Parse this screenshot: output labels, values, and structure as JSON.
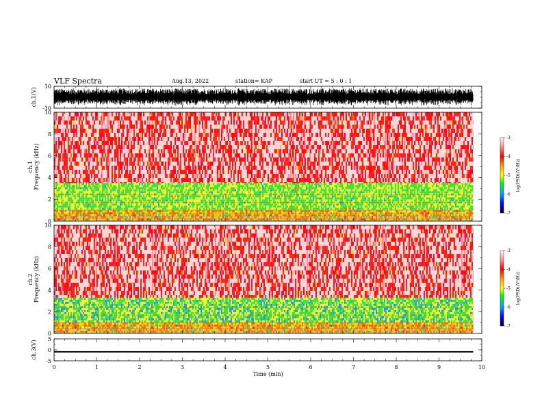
{
  "header": {
    "title": "VLF Spectra",
    "date": "Aug.13, 2022",
    "station": "station= KAP",
    "start_ut": "start  UT  =   5 : 0  : 1"
  },
  "colors": {
    "spec_high": "#ff2020",
    "spec_band": "#33dd33",
    "spec_mid": "#ffdd00",
    "waveform": "#000000"
  },
  "chart_data": [
    {
      "type": "line",
      "id": "ch1-waveform",
      "ylabel": "ch.1(V)",
      "ylim": [
        -10,
        10
      ],
      "yticks": [
        "10",
        "-10"
      ],
      "xlim": [
        0,
        10
      ],
      "series": [
        {
          "values_note": "",
          "envelope": [
            -8,
            8
          ]
        }
      ]
    },
    {
      "type": "heatmap",
      "id": "ch1-spectrogram",
      "ylabel": "ch.1\nFrequency  (kHz)",
      "ylim": [
        0,
        10
      ],
      "yticks": [
        "0",
        "2",
        "4",
        "6",
        "8",
        "10"
      ],
      "xlim": [
        0,
        9.8
      ],
      "colorbar": {
        "label": "log(PSD)(V²/Hz)",
        "ticks": [
          "-3",
          "-4",
          "-5",
          "-6",
          "-7"
        ],
        "range": [
          -7,
          -3
        ]
      },
      "bands": [
        {
          "from_khz": 0.0,
          "to_khz": 1.0,
          "level": -4.6
        },
        {
          "from_khz": 1.0,
          "to_khz": 3.5,
          "level": -5.2
        },
        {
          "from_khz": 3.5,
          "to_khz": 10.0,
          "level": -3.8
        }
      ]
    },
    {
      "type": "heatmap",
      "id": "ch2-spectrogram",
      "ylabel": "ch.2\nFrequency  (kHz)",
      "ylim": [
        0,
        10
      ],
      "yticks": [
        "0",
        "2",
        "4",
        "6",
        "8",
        "10"
      ],
      "xlim": [
        0,
        9.8
      ],
      "colorbar": {
        "label": "log(PSD)(V²/Hz)",
        "ticks": [
          "-3",
          "-4",
          "-5",
          "-6",
          "-7"
        ],
        "range": [
          -7,
          -3
        ]
      },
      "bands": [
        {
          "from_khz": 0.0,
          "to_khz": 1.0,
          "level": -4.6
        },
        {
          "from_khz": 1.0,
          "to_khz": 3.3,
          "level": -5.3
        },
        {
          "from_khz": 3.3,
          "to_khz": 10.0,
          "level": -3.8
        }
      ]
    },
    {
      "type": "line",
      "id": "ch3-waveform",
      "ylabel": "ch.3(V)",
      "ylim": [
        -5,
        5
      ],
      "yticks": [
        "5",
        "0",
        "-5"
      ],
      "xlim": [
        0,
        10
      ],
      "xlabel": "Time  (min)",
      "xticks": [
        "0",
        "1",
        "2",
        "3",
        "4",
        "5",
        "6",
        "7",
        "8",
        "9",
        "10"
      ],
      "series": [
        {
          "envelope": [
            -1.2,
            -0.6
          ]
        }
      ]
    }
  ]
}
